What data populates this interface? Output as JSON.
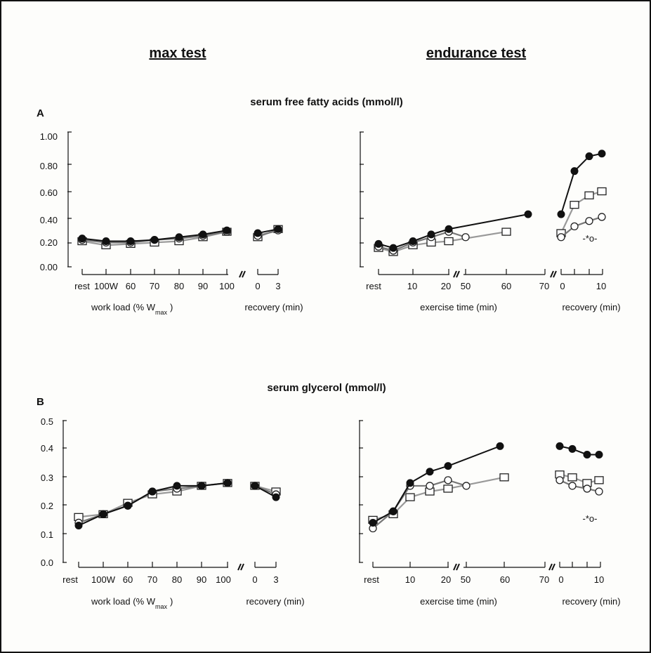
{
  "headers": {
    "max": "max test",
    "endurance": "endurance test"
  },
  "panels": [
    {
      "letter": "A",
      "title": "serum free fatty acids (mmol/l)",
      "yticks": [
        "1.00",
        "0.80",
        "0.60",
        "0.40",
        "0.20",
        "0.00"
      ],
      "left_xlabel": "work load (% W",
      "left_xlabel_sub": "max",
      "left_xlabel_close": ")",
      "left_xticks": [
        "rest",
        "100W",
        "60",
        "70",
        "80",
        "90",
        "100"
      ],
      "rec_short_ticks": [
        "0",
        "3"
      ],
      "rec_label": "recovery (min)",
      "endur_xlabel": "exercise time (min)",
      "endur_xticks": [
        "rest",
        "10",
        "20",
        "50",
        "60",
        "70"
      ],
      "rec_long_ticks": [
        "0",
        "10"
      ],
      "annotation": "-*o-"
    },
    {
      "letter": "B",
      "title": "serum glycerol (mmol/l)",
      "yticks": [
        "0.5",
        "0.4",
        "0.3",
        "0.2",
        "0.1",
        "0.0"
      ],
      "left_xlabel": "work load (% W",
      "left_xlabel_sub": "max",
      "left_xlabel_close": ")",
      "left_xticks": [
        "rest",
        "100W",
        "60",
        "70",
        "80",
        "90",
        "100"
      ],
      "rec_short_ticks": [
        "0",
        "3"
      ],
      "rec_label": "recovery (min)",
      "endur_xlabel": "exercise time (min)",
      "endur_xticks": [
        "rest",
        "10",
        "20",
        "50",
        "60",
        "70"
      ],
      "rec_long_ticks": [
        "0",
        "10"
      ],
      "annotation": "-*o-"
    }
  ],
  "chart_data": [
    {
      "type": "line",
      "panel": "A",
      "title": "serum free fatty acids (mmol/l)",
      "ylim": [
        0,
        1.0
      ],
      "max_test": {
        "xlabel": "work load (% Wmax)",
        "categories": [
          "rest",
          "100W",
          "60",
          "70",
          "80",
          "90",
          "100"
        ],
        "series": [
          {
            "marker": "filled-circle",
            "values": [
              0.21,
              0.19,
              0.19,
              0.2,
              0.22,
              0.24,
              0.27
            ]
          },
          {
            "marker": "open-circle",
            "values": [
              0.2,
              0.18,
              0.18,
              0.2,
              0.21,
              0.23,
              0.26
            ]
          },
          {
            "marker": "open-square",
            "values": [
              0.19,
              0.16,
              0.17,
              0.18,
              0.19,
              0.22,
              0.26
            ]
          }
        ],
        "recovery": {
          "xlabel": "recovery (min)",
          "x": [
            0,
            3
          ],
          "series": [
            {
              "marker": "filled-circle",
              "values": [
                0.25,
                0.28
              ]
            },
            {
              "marker": "open-circle",
              "values": [
                0.23,
                0.27
              ]
            },
            {
              "marker": "open-square",
              "values": [
                0.22,
                0.28
              ]
            }
          ]
        }
      },
      "endurance_test": {
        "xlabel": "exercise time (min)",
        "series": [
          {
            "marker": "filled-circle",
            "x": [
              "rest",
              5,
              10,
              15,
              20,
              65
            ],
            "values": [
              0.17,
              0.14,
              0.19,
              0.24,
              0.28,
              0.39
            ]
          },
          {
            "marker": "open-circle",
            "x": [
              "rest",
              5,
              10,
              15,
              20,
              48
            ],
            "values": [
              0.15,
              0.12,
              0.18,
              0.22,
              0.26,
              0.22
            ]
          },
          {
            "marker": "open-square",
            "x": [
              "rest",
              5,
              10,
              15,
              20,
              60
            ],
            "values": [
              0.14,
              0.11,
              0.16,
              0.18,
              0.19,
              0.26
            ]
          }
        ],
        "recovery": {
          "xlabel": "recovery (min)",
          "x": [
            0,
            3,
            7,
            10
          ],
          "series": [
            {
              "marker": "filled-circle",
              "values": [
                0.39,
                0.71,
                0.82,
                0.84
              ]
            },
            {
              "marker": "open-square",
              "values": [
                0.25,
                0.46,
                0.53,
                0.56
              ]
            },
            {
              "marker": "open-circle",
              "values": [
                0.22,
                0.3,
                0.34,
                0.37
              ]
            }
          ],
          "annotation": "-*o-"
        }
      }
    },
    {
      "type": "line",
      "panel": "B",
      "title": "serum glycerol (mmol/l)",
      "ylim": [
        0,
        0.5
      ],
      "max_test": {
        "xlabel": "work load (% Wmax)",
        "categories": [
          "rest",
          "100W",
          "60",
          "70",
          "80",
          "90",
          "100"
        ],
        "series": [
          {
            "marker": "filled-circle",
            "values": [
              0.13,
              0.17,
              0.2,
              0.25,
              0.27,
              0.27,
              0.28
            ]
          },
          {
            "marker": "open-circle",
            "values": [
              0.14,
              0.17,
              0.2,
              0.25,
              0.26,
              0.27,
              0.28
            ]
          },
          {
            "marker": "open-square",
            "values": [
              0.16,
              0.17,
              0.21,
              0.24,
              0.25,
              0.27,
              0.28
            ]
          }
        ],
        "recovery": {
          "xlabel": "recovery (min)",
          "x": [
            0,
            3
          ],
          "series": [
            {
              "marker": "filled-circle",
              "values": [
                0.27,
                0.23
              ]
            },
            {
              "marker": "open-circle",
              "values": [
                0.27,
                0.24
              ]
            },
            {
              "marker": "open-square",
              "values": [
                0.27,
                0.25
              ]
            }
          ]
        }
      },
      "endurance_test": {
        "xlabel": "exercise time (min)",
        "series": [
          {
            "marker": "filled-circle",
            "x": [
              "rest",
              5,
              10,
              15,
              20,
              65
            ],
            "values": [
              0.14,
              0.18,
              0.28,
              0.32,
              0.34,
              0.41
            ]
          },
          {
            "marker": "open-circle",
            "x": [
              "rest",
              5,
              10,
              15,
              20,
              48
            ],
            "values": [
              0.12,
              0.18,
              0.27,
              0.27,
              0.29,
              0.27
            ]
          },
          {
            "marker": "open-square",
            "x": [
              "rest",
              5,
              10,
              15,
              20,
              60
            ],
            "values": [
              0.15,
              0.17,
              0.23,
              0.25,
              0.26,
              0.3
            ]
          }
        ],
        "recovery": {
          "xlabel": "recovery (min)",
          "x": [
            0,
            3,
            7,
            10
          ],
          "series": [
            {
              "marker": "filled-circle",
              "values": [
                0.41,
                0.4,
                0.38,
                0.38
              ]
            },
            {
              "marker": "open-square",
              "values": [
                0.31,
                0.3,
                0.28,
                0.29
              ]
            },
            {
              "marker": "open-circle",
              "values": [
                0.29,
                0.27,
                0.26,
                0.25
              ]
            }
          ],
          "annotation": "-*o-"
        }
      }
    }
  ]
}
